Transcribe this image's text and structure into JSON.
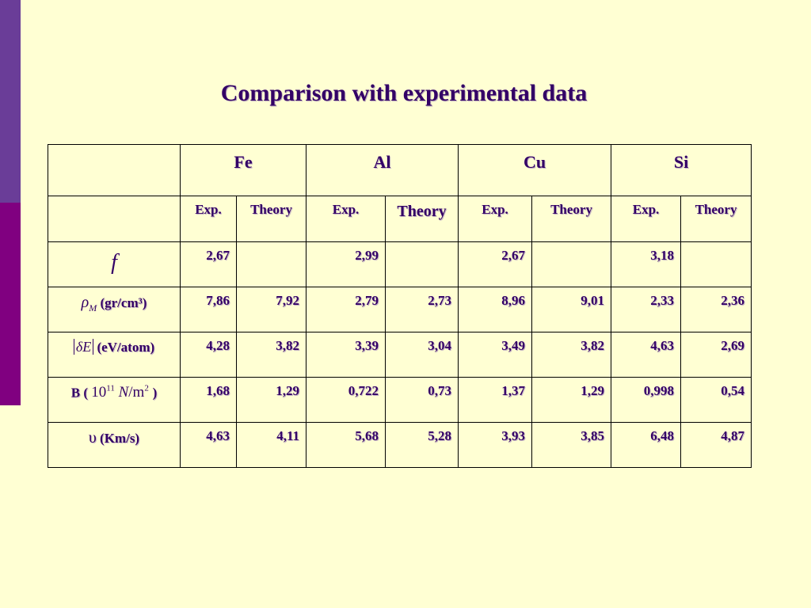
{
  "slide": {
    "title": "Comparison with experimental data"
  },
  "table": {
    "elements": [
      "Fe",
      "Al",
      "Cu",
      "Si"
    ],
    "sub_headers": [
      "Exp.",
      "Theory",
      "Exp.",
      "Theory",
      "Exp.",
      "Theory",
      "Exp.",
      "Theory"
    ],
    "row_labels": {
      "f_symbol": "f",
      "rho_symbol": "ρ",
      "rho_subscript": "M",
      "rho_units": "(gr/cm³)",
      "de_symbol": "δE",
      "de_units": "(eV/atom)",
      "b_prefix": "B (",
      "b_ten": "10",
      "b_exp": "11",
      "b_n": "N",
      "b_slash": "/",
      "b_m": "m",
      "b_m_exp": "2",
      "b_suffix": ")",
      "v_symbol": "υ",
      "v_units": "(Km/s)"
    },
    "rows": [
      [
        "2,67",
        "",
        "2,99",
        "",
        "2,67",
        "",
        "3,18",
        ""
      ],
      [
        "7,86",
        "7,92",
        "2,79",
        "2,73",
        "8,96",
        "9,01",
        "2,33",
        "2,36"
      ],
      [
        "4,28",
        "3,82",
        "3,39",
        "3,04",
        "3,49",
        "3,82",
        "4,63",
        "2,69"
      ],
      [
        "1,68",
        "1,29",
        "0,722",
        "0,73",
        "1,37",
        "1,29",
        "0,998",
        "0,54"
      ],
      [
        "4,63",
        "4,11",
        "5,68",
        "5,28",
        "3,93",
        "3,85",
        "6,48",
        "4,87"
      ]
    ]
  },
  "colors": {
    "background": "#ffffd3",
    "text": "#330066",
    "side_bar_top": "#6a3d98",
    "side_bar_bottom": "#800080"
  }
}
